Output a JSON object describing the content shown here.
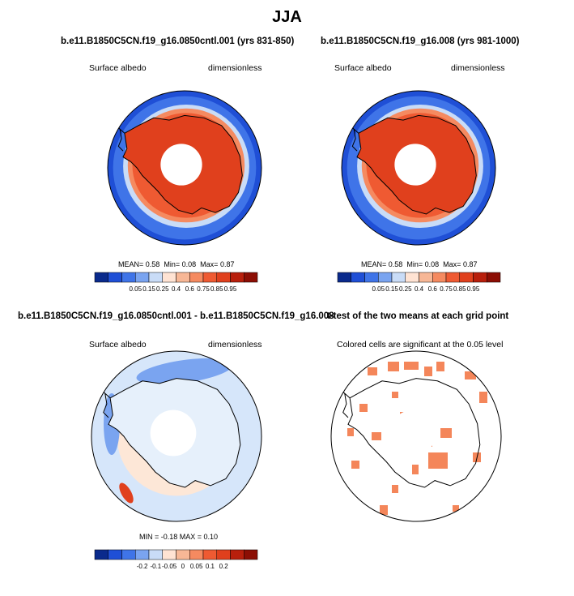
{
  "figure": {
    "title": "JJA"
  },
  "panels": [
    {
      "title": "b.e11.B1850C5CN.f19_g16.0850cntl.001 (yrs 831-850)",
      "left_label": "Surface albedo",
      "right_label": "dimensionless",
      "stats": {
        "mean_label": "MEAN=",
        "mean": "0.58",
        "min_label": "Min=",
        "min": "0.08",
        "max_label": "Max=",
        "max": "0.87"
      }
    },
    {
      "title": "b.e11.B1850C5CN.f19_g16.008 (yrs 981-1000)",
      "left_label": "Surface albedo",
      "right_label": "dimensionless",
      "stats": {
        "mean_label": "MEAN=",
        "mean": "0.58",
        "min_label": "Min=",
        "min": "0.08",
        "max_label": "Max=",
        "max": "0.87"
      }
    },
    {
      "title": "b.e11.B1850C5CN.f19_g16.0850cntl.001 - b.e11.B1850C5CN.f19_g16.008",
      "left_label": "Surface albedo",
      "right_label": "dimensionless",
      "stats_text": "MIN =  -0.18 MAX =  0.10"
    },
    {
      "title": "t-test of the two means at each grid point",
      "subtitle": "Colored cells are significant at the 0.05 level"
    }
  ],
  "chart_data": [
    {
      "type": "heatmap",
      "title": "b.e11.B1850C5CN.f19_g16.0850cntl.001 (yrs 831-850)",
      "projection": "south polar stereographic",
      "colorbar": {
        "levels": [
          0.05,
          0.15,
          0.25,
          0.4,
          0.6,
          0.75,
          0.85,
          0.95
        ],
        "tick_labels": [
          "0.05",
          "0.15",
          "0.25",
          "0.4",
          "0.6",
          "0.75",
          "0.85",
          "0.95"
        ],
        "colors": [
          "#0a2a8c",
          "#1f4fd6",
          "#3f74e8",
          "#7aa4f0",
          "#c9dcf7",
          "#ffe3d3",
          "#f7b796",
          "#f58a60",
          "#ef5a32",
          "#e0401d",
          "#b81f0c",
          "#8c0e04"
        ]
      },
      "mean": 0.58,
      "min": 0.08,
      "max": 0.87
    },
    {
      "type": "heatmap",
      "title": "b.e11.B1850C5CN.f19_g16.008 (yrs 981-1000)",
      "projection": "south polar stereographic",
      "colorbar": {
        "levels": [
          0.05,
          0.15,
          0.25,
          0.4,
          0.6,
          0.75,
          0.85,
          0.95
        ],
        "tick_labels": [
          "0.05",
          "0.15",
          "0.25",
          "0.4",
          "0.6",
          "0.75",
          "0.85",
          "0.95"
        ],
        "colors": [
          "#0a2a8c",
          "#1f4fd6",
          "#3f74e8",
          "#7aa4f0",
          "#c9dcf7",
          "#ffe3d3",
          "#f7b796",
          "#f58a60",
          "#ef5a32",
          "#e0401d",
          "#b81f0c",
          "#8c0e04"
        ]
      },
      "mean": 0.58,
      "min": 0.08,
      "max": 0.87
    },
    {
      "type": "heatmap",
      "title": "b.e11.B1850C5CN.f19_g16.0850cntl.001 - b.e11.B1850C5CN.f19_g16.008",
      "projection": "south polar stereographic",
      "colorbar": {
        "levels": [
          -0.2,
          -0.1,
          -0.05,
          0,
          0.05,
          0.1,
          0.2
        ],
        "tick_labels": [
          "-0.2",
          "-0.1",
          "-0.05",
          "0",
          "0.05",
          "0.1",
          "0.2"
        ],
        "colors": [
          "#0a2a8c",
          "#1f4fd6",
          "#3f74e8",
          "#7aa4f0",
          "#c9dcf7",
          "#ffe3d3",
          "#f7b796",
          "#f58a60",
          "#ef5a32",
          "#e0401d",
          "#b81f0c",
          "#8c0e04"
        ]
      },
      "min": -0.18,
      "max": 0.1
    },
    {
      "type": "heatmap",
      "title": "t-test of the two means at each grid point",
      "projection": "south polar stereographic",
      "significance_level": 0.05,
      "cell_color": "#f4865a"
    }
  ],
  "colors": {
    "ocean_blue": "#1f4fd6",
    "ice_orange": "#ef5a32",
    "pole_hole": "#ffffff"
  }
}
